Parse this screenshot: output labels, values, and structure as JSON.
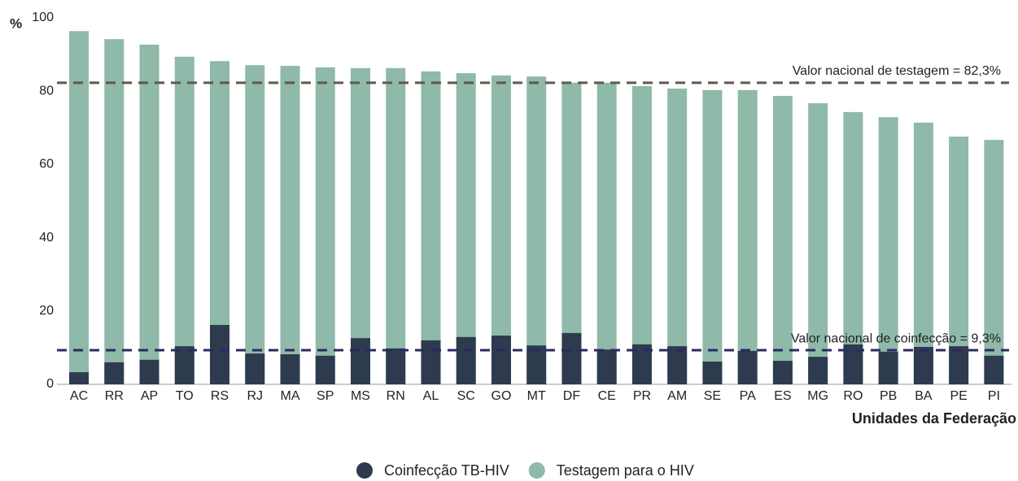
{
  "chart_data": {
    "type": "bar",
    "y_label": "%",
    "x_label": "Unidades da Federação",
    "categories": [
      "AC",
      "RR",
      "AP",
      "TO",
      "RS",
      "RJ",
      "MA",
      "SP",
      "MS",
      "RN",
      "AL",
      "SC",
      "GO",
      "MT",
      "DF",
      "CE",
      "PR",
      "AM",
      "SE",
      "PA",
      "ES",
      "MG",
      "RO",
      "PB",
      "BA",
      "PE",
      "PI"
    ],
    "series": [
      {
        "name": "Coinfecção TB-HIV",
        "color": "#2e3b4e",
        "values": [
          3.3,
          6.0,
          6.7,
          10.4,
          16.2,
          8.4,
          8.2,
          7.8,
          12.6,
          9.8,
          12.0,
          12.9,
          13.3,
          10.6,
          14.0,
          9.5,
          10.9,
          10.4,
          6.2,
          9.1,
          6.4,
          7.5,
          10.9,
          8.9,
          10.2,
          10.4,
          7.8
        ]
      },
      {
        "name": "Testagem para o HIV",
        "color": "#8fb9a8",
        "values": [
          96.4,
          94.2,
          92.7,
          89.4,
          88.2,
          87.1,
          86.9,
          86.5,
          86.3,
          86.3,
          85.4,
          84.9,
          84.3,
          84.0,
          82.3,
          82.3,
          81.4,
          80.7,
          80.3,
          80.3,
          78.7,
          76.7,
          74.3,
          72.9,
          71.4,
          67.6,
          66.7
        ]
      }
    ],
    "reference_lines": [
      {
        "value": 82.3,
        "label": "Valor nacional de testagem = 82,3%",
        "color": "#5e5a48"
      },
      {
        "value": 9.3,
        "label": "Valor nacional de coinfecção = 9,3%",
        "color": "#2b2a63"
      }
    ],
    "ylim": [
      0,
      100
    ],
    "yticks": [
      0,
      20,
      40,
      60,
      80,
      100
    ],
    "grid": false
  }
}
